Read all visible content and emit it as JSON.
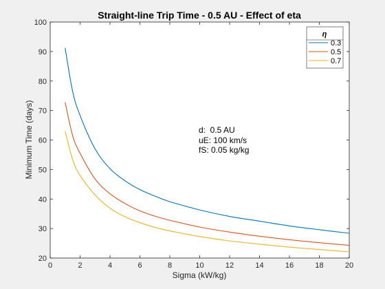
{
  "chart_data": {
    "type": "line",
    "title": "Straight-line Trip Time - 0.5 AU - Effect of eta",
    "xlabel": "Sigma (kW/kg)",
    "ylabel": "Minimum Time (days)",
    "xlim": [
      0,
      20
    ],
    "ylim": [
      20,
      100
    ],
    "xticks": [
      0,
      2,
      4,
      6,
      8,
      10,
      12,
      14,
      16,
      18,
      20
    ],
    "yticks": [
      20,
      30,
      40,
      50,
      60,
      70,
      80,
      90,
      100
    ],
    "grid": false,
    "legend": {
      "title": "η",
      "placement": "top-right"
    },
    "series": [
      {
        "name": "0.3",
        "color": "#0072BD",
        "x": [
          1,
          1.5,
          2,
          3,
          4,
          5,
          6,
          7,
          8,
          10,
          12,
          14,
          16,
          18,
          20
        ],
        "y": [
          91.2,
          76.5,
          68.3,
          57.0,
          50.3,
          46.2,
          43.2,
          41.0,
          39.1,
          36.3,
          34.1,
          32.5,
          30.9,
          29.6,
          28.4
        ]
      },
      {
        "name": "0.5",
        "color": "#D95319",
        "x": [
          1,
          1.5,
          2,
          3,
          4,
          5,
          6,
          7,
          8,
          10,
          12,
          14,
          16,
          18,
          20
        ],
        "y": [
          72.8,
          61.5,
          55.5,
          46.8,
          41.8,
          38.5,
          36.0,
          34.2,
          32.8,
          30.5,
          28.8,
          27.4,
          26.2,
          25.2,
          24.3
        ]
      },
      {
        "name": "0.7",
        "color": "#EDB120",
        "x": [
          1,
          1.5,
          2,
          3,
          4,
          5,
          6,
          7,
          8,
          10,
          12,
          14,
          16,
          18,
          20
        ],
        "y": [
          63.0,
          53.4,
          48.0,
          41.4,
          36.9,
          34.0,
          32.0,
          30.4,
          29.2,
          27.3,
          25.8,
          24.7,
          23.7,
          22.9,
          22.1
        ]
      }
    ],
    "annotations": [
      "d:  0.5 AU",
      "uE: 100 km/s",
      "fS: 0.05 kg/kg"
    ]
  }
}
